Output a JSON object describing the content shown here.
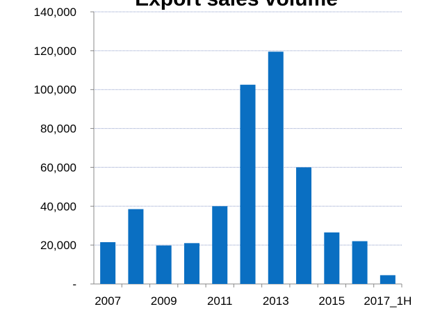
{
  "chart_data": {
    "type": "bar",
    "title": "Export sales volume",
    "categories": [
      "2007",
      null,
      "2009",
      null,
      "2011",
      null,
      "2013",
      null,
      "2015",
      null,
      "2017_1H"
    ],
    "values": [
      21500,
      38500,
      19800,
      21000,
      40000,
      102500,
      119500,
      60000,
      26500,
      22000,
      4500
    ],
    "color": "#0a6fc2",
    "ylim": [
      0,
      140000
    ],
    "yticks": [
      {
        "value": 0,
        "label": "-"
      },
      {
        "value": 20000,
        "label": "20,000"
      },
      {
        "value": 40000,
        "label": "40,000"
      },
      {
        "value": 60000,
        "label": "60,000"
      },
      {
        "value": 80000,
        "label": "80,000"
      },
      {
        "value": 100000,
        "label": "100,000"
      },
      {
        "value": 120000,
        "label": "120,000"
      },
      {
        "value": 140000,
        "label": "140,000"
      }
    ],
    "grid": true
  }
}
